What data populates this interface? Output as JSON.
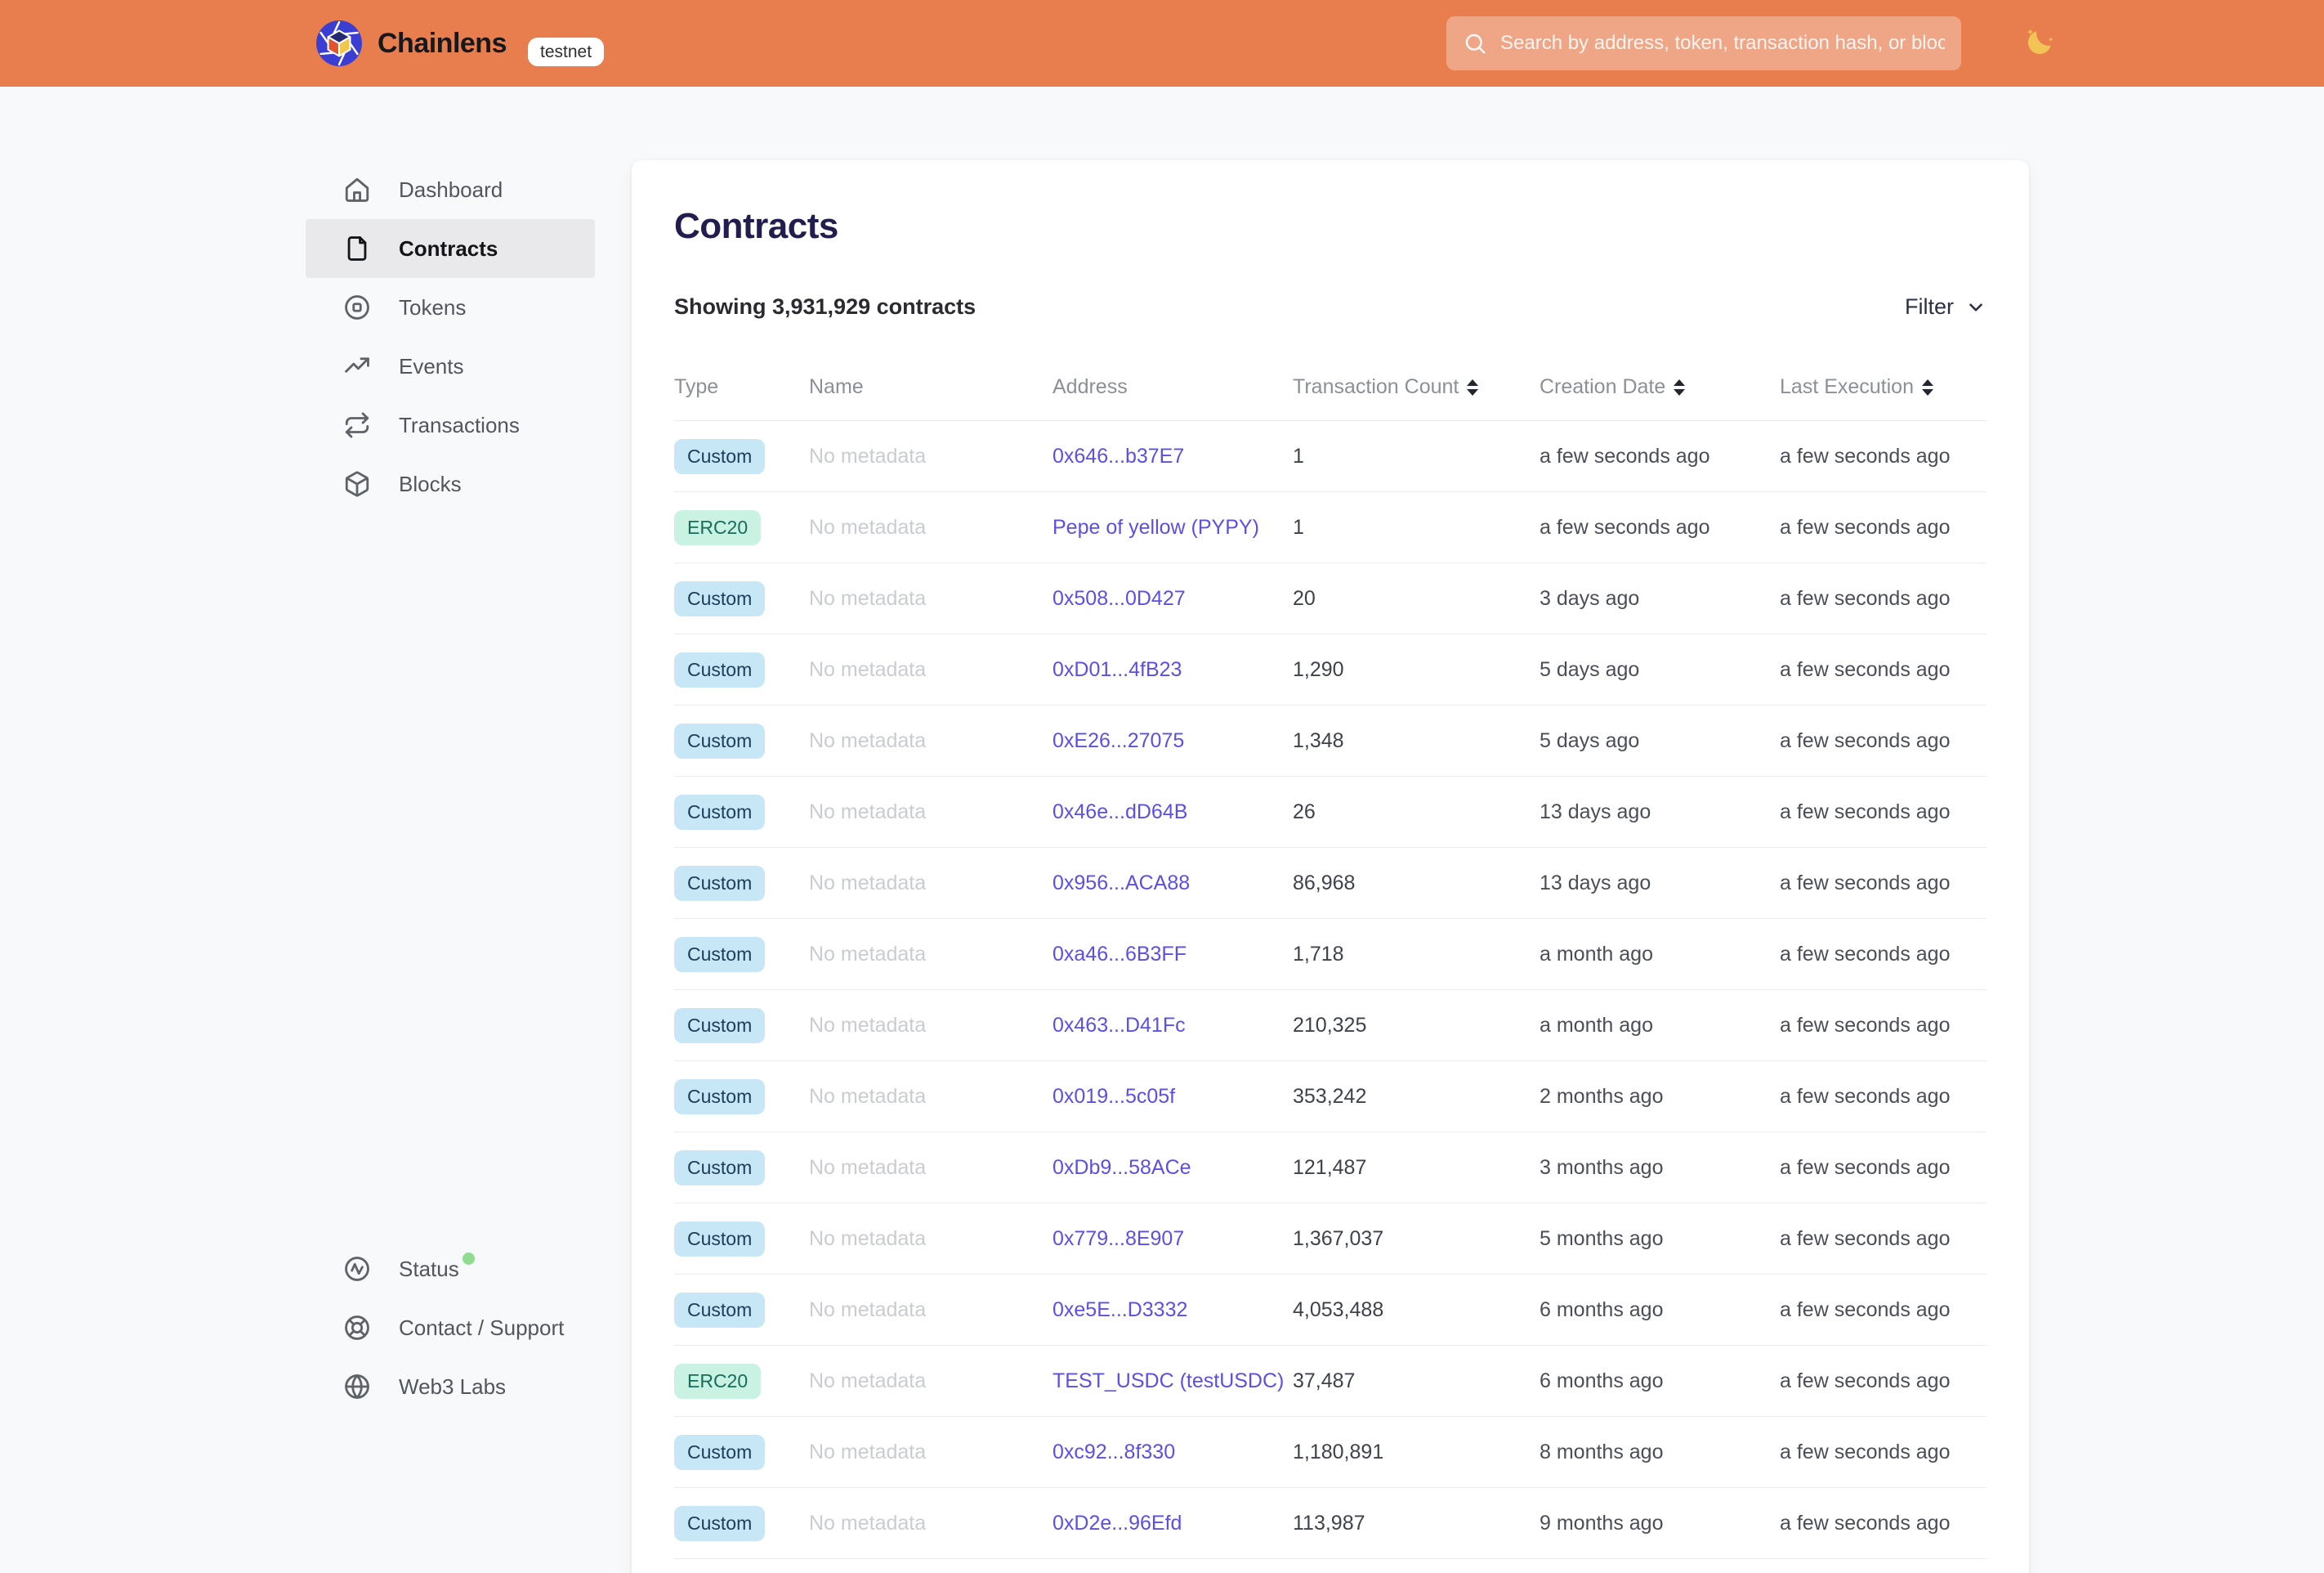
{
  "header": {
    "brand": "Chainlens",
    "env_badge": "testnet",
    "search_placeholder": "Search by address, token, transaction hash, or block number"
  },
  "sidebar": {
    "items": [
      {
        "label": "Dashboard",
        "icon": "home",
        "selected": false
      },
      {
        "label": "Contracts",
        "icon": "file",
        "selected": true
      },
      {
        "label": "Tokens",
        "icon": "token",
        "selected": false
      },
      {
        "label": "Events",
        "icon": "trending-up",
        "selected": false
      },
      {
        "label": "Transactions",
        "icon": "repeat",
        "selected": false
      },
      {
        "label": "Blocks",
        "icon": "cube",
        "selected": false
      }
    ],
    "footer_items": [
      {
        "label": "Status",
        "icon": "activity",
        "status_dot": true
      },
      {
        "label": "Contact / Support",
        "icon": "lifebuoy",
        "status_dot": false
      },
      {
        "label": "Web3 Labs",
        "icon": "globe",
        "status_dot": false
      }
    ]
  },
  "main": {
    "title": "Contracts",
    "summary": "Showing 3,931,929 contracts",
    "filter_label": "Filter",
    "table": {
      "columns": [
        {
          "label": "Type",
          "sortable": false
        },
        {
          "label": "Name",
          "sortable": false
        },
        {
          "label": "Address",
          "sortable": false
        },
        {
          "label": "Transaction Count",
          "sortable": true
        },
        {
          "label": "Creation Date",
          "sortable": true
        },
        {
          "label": "Last Execution",
          "sortable": true
        }
      ],
      "rows": [
        {
          "type": "Custom",
          "name": "No metadata",
          "address": "0x646...b37E7",
          "tx_count": "1",
          "creation": "a few seconds ago",
          "last_execution": "a few seconds ago"
        },
        {
          "type": "ERC20",
          "name": "No metadata",
          "address": "Pepe of yellow (PYPY)",
          "tx_count": "1",
          "creation": "a few seconds ago",
          "last_execution": "a few seconds ago"
        },
        {
          "type": "Custom",
          "name": "No metadata",
          "address": "0x508...0D427",
          "tx_count": "20",
          "creation": "3 days ago",
          "last_execution": "a few seconds ago"
        },
        {
          "type": "Custom",
          "name": "No metadata",
          "address": "0xD01...4fB23",
          "tx_count": "1,290",
          "creation": "5 days ago",
          "last_execution": "a few seconds ago"
        },
        {
          "type": "Custom",
          "name": "No metadata",
          "address": "0xE26...27075",
          "tx_count": "1,348",
          "creation": "5 days ago",
          "last_execution": "a few seconds ago"
        },
        {
          "type": "Custom",
          "name": "No metadata",
          "address": "0x46e...dD64B",
          "tx_count": "26",
          "creation": "13 days ago",
          "last_execution": "a few seconds ago"
        },
        {
          "type": "Custom",
          "name": "No metadata",
          "address": "0x956...ACA88",
          "tx_count": "86,968",
          "creation": "13 days ago",
          "last_execution": "a few seconds ago"
        },
        {
          "type": "Custom",
          "name": "No metadata",
          "address": "0xa46...6B3FF",
          "tx_count": "1,718",
          "creation": "a month ago",
          "last_execution": "a few seconds ago"
        },
        {
          "type": "Custom",
          "name": "No metadata",
          "address": "0x463...D41Fc",
          "tx_count": "210,325",
          "creation": "a month ago",
          "last_execution": "a few seconds ago"
        },
        {
          "type": "Custom",
          "name": "No metadata",
          "address": "0x019...5c05f",
          "tx_count": "353,242",
          "creation": "2 months ago",
          "last_execution": "a few seconds ago"
        },
        {
          "type": "Custom",
          "name": "No metadata",
          "address": "0xDb9...58ACe",
          "tx_count": "121,487",
          "creation": "3 months ago",
          "last_execution": "a few seconds ago"
        },
        {
          "type": "Custom",
          "name": "No metadata",
          "address": "0x779...8E907",
          "tx_count": "1,367,037",
          "creation": "5 months ago",
          "last_execution": "a few seconds ago"
        },
        {
          "type": "Custom",
          "name": "No metadata",
          "address": "0xe5E...D3332",
          "tx_count": "4,053,488",
          "creation": "6 months ago",
          "last_execution": "a few seconds ago"
        },
        {
          "type": "ERC20",
          "name": "No metadata",
          "address": "TEST_USDC (testUSDC)",
          "tx_count": "37,487",
          "creation": "6 months ago",
          "last_execution": "a few seconds ago"
        },
        {
          "type": "Custom",
          "name": "No metadata",
          "address": "0xc92...8f330",
          "tx_count": "1,180,891",
          "creation": "8 months ago",
          "last_execution": "a few seconds ago"
        },
        {
          "type": "Custom",
          "name": "No metadata",
          "address": "0xD2e...96Efd",
          "tx_count": "113,987",
          "creation": "9 months ago",
          "last_execution": "a few seconds ago"
        }
      ]
    }
  },
  "colors": {
    "header_bg": "#e87d4e",
    "link": "#5b50e6",
    "title": "#221d4f",
    "badge_custom_bg": "#c7e6f6",
    "badge_custom_text": "#1c3d5a",
    "badge_erc20_bg": "#c9f2e2",
    "badge_erc20_text": "#176d5c",
    "status_dot": "#8fdc8f"
  }
}
